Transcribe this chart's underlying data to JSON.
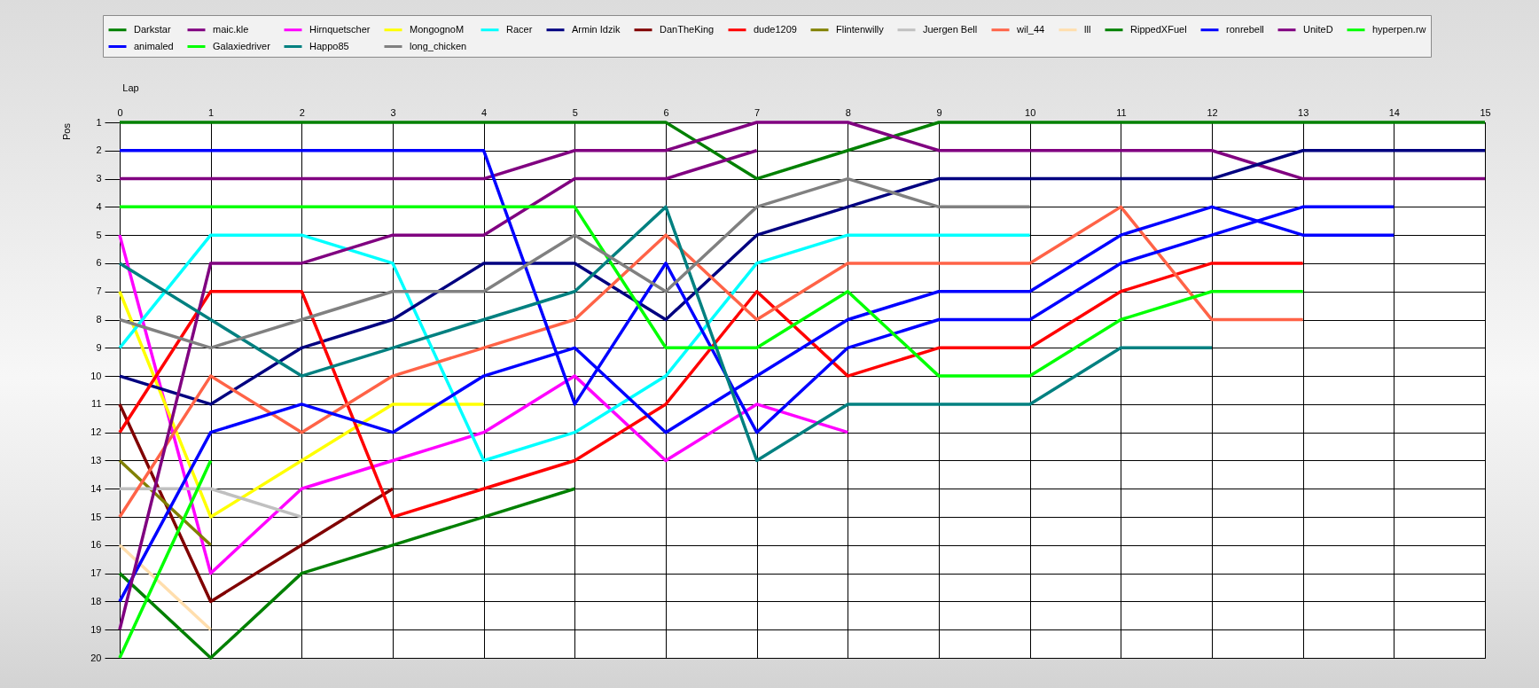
{
  "chart_data": {
    "type": "line",
    "xlabel": "Lap",
    "ylabel": "Pos",
    "x": [
      0,
      1,
      2,
      3,
      4,
      5,
      6,
      7,
      8,
      9,
      10,
      11,
      12,
      13,
      14,
      15
    ],
    "xlim": [
      0,
      15
    ],
    "xticks": [
      0,
      1,
      2,
      3,
      4,
      5,
      6,
      7,
      8,
      9,
      10,
      11,
      12,
      13,
      14,
      15
    ],
    "ylim": [
      20,
      1
    ],
    "yticks": [
      1,
      2,
      3,
      4,
      5,
      6,
      7,
      8,
      9,
      10,
      11,
      12,
      13,
      14,
      15,
      16,
      17,
      18,
      19,
      20
    ],
    "grid": true,
    "legend": "top",
    "line_style": "solid",
    "series": [
      {
        "name": "Darkstar",
        "color": "#008000",
        "values": [
          1,
          1,
          1,
          1,
          1,
          1,
          1,
          3,
          2,
          1,
          1,
          1,
          1,
          1,
          1,
          1
        ]
      },
      {
        "name": "maic.kle",
        "color": "#800080",
        "values": [
          3,
          3,
          3,
          3,
          3,
          2,
          2,
          1,
          1,
          2,
          2,
          2,
          2,
          3,
          3,
          3
        ]
      },
      {
        "name": "Hirnquetscher",
        "color": "#ff00ff",
        "values": [
          5,
          17,
          14,
          13,
          12,
          10,
          13,
          11,
          12,
          null,
          null,
          null,
          null,
          null,
          null,
          null
        ]
      },
      {
        "name": "MongognoM",
        "color": "#ffff00",
        "values": [
          7,
          15,
          13,
          11,
          11,
          null,
          null,
          null,
          null,
          null,
          null,
          null,
          null,
          null,
          null,
          null
        ]
      },
      {
        "name": "Racer",
        "color": "#00ffff",
        "values": [
          9,
          5,
          5,
          6,
          13,
          12,
          10,
          6,
          5,
          5,
          5,
          null,
          null,
          null,
          null,
          null
        ]
      },
      {
        "name": "Armin Idzik",
        "color": "#000080",
        "values": [
          10,
          11,
          9,
          8,
          6,
          6,
          8,
          5,
          4,
          3,
          3,
          3,
          3,
          2,
          2,
          2
        ]
      },
      {
        "name": "DanTheKing",
        "color": "#800000",
        "values": [
          11,
          18,
          16,
          14,
          null,
          null,
          null,
          null,
          null,
          null,
          null,
          null,
          null,
          null,
          null,
          null
        ]
      },
      {
        "name": "dude1209",
        "color": "#ff0000",
        "values": [
          12,
          7,
          7,
          15,
          14,
          13,
          11,
          7,
          10,
          9,
          9,
          7,
          6,
          6,
          null,
          null
        ]
      },
      {
        "name": "Flintenwilly",
        "color": "#808000",
        "values": [
          13,
          16,
          null,
          null,
          null,
          null,
          null,
          null,
          null,
          null,
          null,
          null,
          null,
          null,
          null,
          null
        ]
      },
      {
        "name": "Juergen Bell",
        "color": "#c0c0c0",
        "values": [
          14,
          14,
          15,
          null,
          null,
          null,
          null,
          null,
          null,
          null,
          null,
          null,
          null,
          null,
          null,
          null
        ]
      },
      {
        "name": "wil_44",
        "color": "#ff6347",
        "values": [
          15,
          10,
          12,
          10,
          9,
          8,
          5,
          8,
          6,
          6,
          6,
          4,
          8,
          8,
          null,
          null
        ]
      },
      {
        "name": "lll",
        "color": "#ffdead",
        "values": [
          16,
          19,
          null,
          null,
          null,
          null,
          null,
          null,
          null,
          null,
          null,
          null,
          null,
          null,
          null,
          null
        ]
      },
      {
        "name": "RippedXFuel",
        "color": "#008000",
        "values": [
          17,
          20,
          17,
          16,
          15,
          14,
          null,
          null,
          null,
          null,
          null,
          null,
          null,
          null,
          null,
          null
        ]
      },
      {
        "name": "ronrebell",
        "color": "#0000ff",
        "values": [
          18,
          12,
          11,
          12,
          10,
          9,
          12,
          10,
          8,
          7,
          7,
          5,
          4,
          5,
          5,
          null
        ]
      },
      {
        "name": "UniteD",
        "color": "#800080",
        "values": [
          19,
          6,
          6,
          5,
          5,
          3,
          3,
          2,
          null,
          null,
          null,
          null,
          null,
          null,
          null,
          null
        ]
      },
      {
        "name": "hyperpen.rw",
        "color": "#00ff00",
        "values": [
          20,
          13,
          null,
          null,
          null,
          null,
          null,
          null,
          null,
          null,
          null,
          null,
          null,
          null,
          null,
          null
        ]
      },
      {
        "name": "animaled",
        "color": "#0000ff",
        "values": [
          2,
          2,
          2,
          2,
          2,
          11,
          6,
          12,
          9,
          8,
          8,
          6,
          5,
          4,
          4,
          null
        ]
      },
      {
        "name": "Galaxiedriver",
        "color": "#00ff00",
        "values": [
          4,
          4,
          4,
          4,
          4,
          4,
          9,
          9,
          7,
          10,
          10,
          8,
          7,
          7,
          null,
          null
        ]
      },
      {
        "name": "Happo85",
        "color": "#008080",
        "values": [
          6,
          8,
          10,
          9,
          8,
          7,
          4,
          13,
          11,
          11,
          11,
          9,
          9,
          null,
          null,
          null
        ]
      },
      {
        "name": "long_chicken",
        "color": "#808080",
        "values": [
          8,
          9,
          8,
          7,
          7,
          5,
          7,
          4,
          3,
          4,
          4,
          null,
          null,
          null,
          null,
          null
        ]
      }
    ]
  }
}
